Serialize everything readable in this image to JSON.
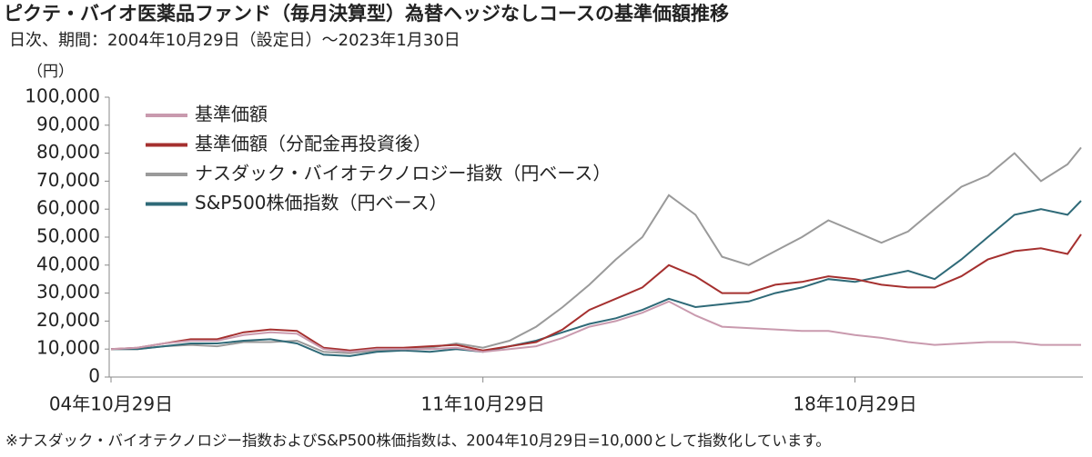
{
  "chart_data": {
    "type": "line",
    "title": "ピクテ・バイオ医薬品ファンド（毎月決算型）為替ヘッジなしコースの基準価額推移",
    "subtitle": "日次、期間：2004年10月29日（設定日）～2023年1月30日",
    "y_label": "（円）",
    "footnote": "※ナスダック・バイオテクノロジー指数およびS&P500株価指数は、2004年10月29日=10,000として指数化しています。",
    "x": [
      "2004-10-29",
      "2005-04-29",
      "2005-10-29",
      "2006-04-29",
      "2006-10-29",
      "2007-04-29",
      "2007-10-29",
      "2008-04-29",
      "2008-10-29",
      "2009-04-29",
      "2009-10-29",
      "2010-04-29",
      "2010-10-29",
      "2011-04-29",
      "2011-10-29",
      "2012-04-29",
      "2012-10-29",
      "2013-04-29",
      "2013-10-29",
      "2014-04-29",
      "2014-10-29",
      "2015-04-29",
      "2015-10-29",
      "2016-04-29",
      "2016-10-29",
      "2017-04-29",
      "2017-10-29",
      "2018-04-29",
      "2018-10-29",
      "2019-04-29",
      "2019-10-29",
      "2020-04-29",
      "2020-10-29",
      "2021-04-29",
      "2021-10-29",
      "2022-04-29",
      "2022-10-29",
      "2023-01-30"
    ],
    "series": [
      {
        "name": "基準価額",
        "color": "#c99aae",
        "values": [
          10000,
          10500,
          12000,
          13000,
          13000,
          15000,
          16000,
          15500,
          10000,
          9000,
          10000,
          10000,
          10000,
          10500,
          9000,
          10000,
          11000,
          14000,
          18000,
          20000,
          23000,
          27000,
          22000,
          18000,
          17500,
          17000,
          16500,
          16500,
          15000,
          14000,
          12500,
          11500,
          12000,
          12500,
          12500,
          11500,
          11500,
          11500
        ]
      },
      {
        "name": "基準価額（分配金再投資後）",
        "color": "#a5302f",
        "values": [
          10000,
          10500,
          12000,
          13500,
          13500,
          16000,
          17000,
          16500,
          10500,
          9500,
          10500,
          10500,
          11000,
          11500,
          9500,
          11000,
          12500,
          17000,
          24000,
          28000,
          32000,
          40000,
          36000,
          30000,
          30000,
          33000,
          34000,
          36000,
          35000,
          33000,
          32000,
          32000,
          36000,
          42000,
          45000,
          46000,
          44000,
          51000
        ]
      },
      {
        "name": "ナスダック・バイオテクノロジー指数（円ベース）",
        "color": "#9a9a9a",
        "values": [
          10000,
          10000,
          11000,
          11500,
          11000,
          12500,
          12500,
          13000,
          9000,
          8500,
          9500,
          10000,
          10500,
          12000,
          10500,
          13000,
          18000,
          25000,
          33000,
          42000,
          50000,
          65000,
          58000,
          43000,
          40000,
          45000,
          50000,
          56000,
          52000,
          48000,
          52000,
          60000,
          68000,
          72000,
          80000,
          70000,
          76000,
          82000
        ]
      },
      {
        "name": "S&P500株価指数（円ベース）",
        "color": "#2f6a78",
        "values": [
          10000,
          10000,
          11000,
          12000,
          12000,
          13000,
          13500,
          12000,
          8000,
          7500,
          9000,
          9500,
          9000,
          10000,
          9000,
          11000,
          13000,
          16000,
          19000,
          21000,
          24000,
          28000,
          25000,
          26000,
          27000,
          30000,
          32000,
          35000,
          34000,
          36000,
          38000,
          35000,
          42000,
          50000,
          58000,
          60000,
          58000,
          63000
        ]
      }
    ],
    "xlim": [
      "2004-10-29",
      "2023-01-30"
    ],
    "xticks": [
      {
        "value": "2004-10-29",
        "label": "04年10月29日"
      },
      {
        "value": "2011-10-29",
        "label": "11年10月29日"
      },
      {
        "value": "2018-10-29",
        "label": "18年10月29日"
      }
    ],
    "ylim": [
      0,
      100000
    ],
    "yticks": [
      0,
      {
        "value": 10000,
        "label": "10,000"
      },
      {
        "value": 20000,
        "label": "20,000"
      },
      {
        "value": 30000,
        "label": "30,000"
      },
      {
        "value": 40000,
        "label": "40,000"
      },
      {
        "value": 50000,
        "label": "50,000"
      },
      {
        "value": 60000,
        "label": "60,000"
      },
      {
        "value": 70000,
        "label": "70,000"
      },
      {
        "value": 80000,
        "label": "80,000"
      },
      {
        "value": 90000,
        "label": "90,000"
      },
      {
        "value": {
          "value": 100000,
          "label": "100,000"
        },
        "label": "100,000"
      }
    ],
    "legend": "upper-left"
  }
}
